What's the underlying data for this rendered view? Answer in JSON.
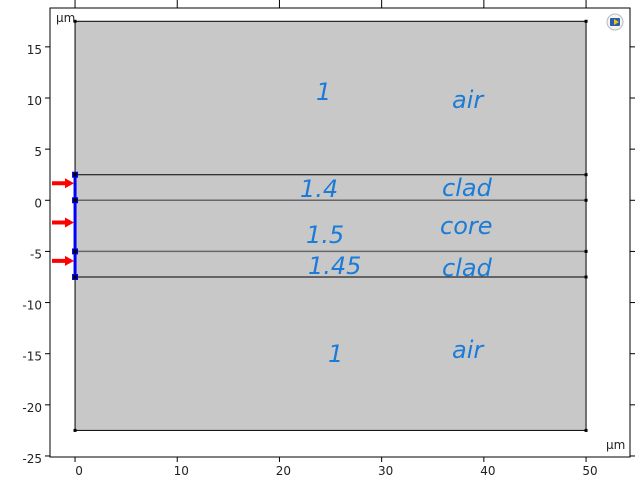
{
  "plot": {
    "unit_label_y": "µm",
    "unit_label_x": "µm",
    "xlim": [
      -2.45,
      54.3
    ],
    "ylim": [
      -25.1,
      18.8
    ],
    "x_ticks": [
      0,
      10,
      20,
      30,
      40,
      50
    ],
    "y_ticks": [
      15,
      10,
      5,
      0,
      -5,
      -10,
      -15,
      -20,
      -25
    ],
    "x_tick_labels": [
      "0",
      "10",
      "20",
      "30",
      "40",
      "50"
    ],
    "y_tick_labels": [
      "15",
      "10",
      "5",
      "0",
      "-5",
      "-10",
      "-15",
      "-20",
      "-25"
    ]
  },
  "geometry": {
    "domain": {
      "x": [
        0,
        50
      ],
      "y": [
        -22.5,
        17.5
      ]
    },
    "interfaces_y": [
      2.5,
      0,
      -5,
      -7.5
    ],
    "selected_boundary": {
      "x": 0,
      "y": [
        -7.5,
        2.5
      ]
    },
    "arrow_y": [
      1.67,
      -2.17,
      -5.92
    ],
    "colors": {
      "fill": "#c8c8c8",
      "selected": "#0000ff",
      "arrow": "#ff0000",
      "notes": "#1a7bd8"
    }
  },
  "annotations": [
    {
      "index": "1",
      "label": "air"
    },
    {
      "index": "1.4",
      "label": "clad"
    },
    {
      "index": "1.5",
      "label": "core"
    },
    {
      "index": "1.45",
      "label": "clad"
    },
    {
      "index": "1",
      "label": "air"
    }
  ],
  "toolbar": {
    "icon": "graphics-view-icon"
  }
}
